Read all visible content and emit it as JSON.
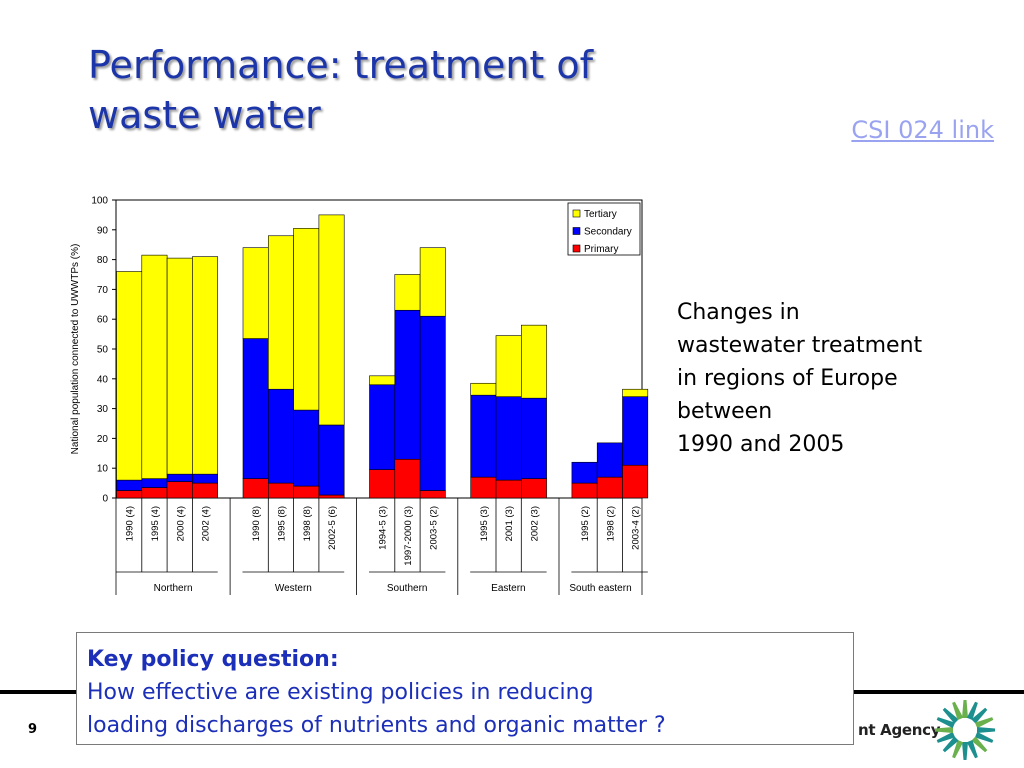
{
  "slide": {
    "title_lines": [
      "Performance: treatment of",
      "waste water"
    ],
    "link_text": "CSI 024 link",
    "caption_lines": [
      "Changes in",
      "wastewater treatment",
      "in regions of Europe",
      "between",
      "1990 and 2005"
    ],
    "policy_heading": "Key policy question:",
    "policy_lines": [
      "How effective are existing policies in reducing",
      "loading discharges of nutrients and organic matter ?"
    ],
    "page_number": "9",
    "agency_text": "nt Agency",
    "colors": {
      "title": "#1c35a8",
      "link": "#9aa3f0",
      "policy_text": "#1c2fb8",
      "logo": "#1e8f8f"
    }
  },
  "chart_data": {
    "type": "bar",
    "stacked": true,
    "ylabel": "National population connected to UWWTPs (%)",
    "ylim": [
      0,
      100
    ],
    "yticks": [
      0,
      10,
      20,
      30,
      40,
      50,
      60,
      70,
      80,
      90,
      100
    ],
    "legend_position": "top-right",
    "groups": [
      {
        "name": "Northern",
        "categories": [
          "1990 (4)",
          "1995 (4)",
          "2000 (4)",
          "2002 (4)"
        ]
      },
      {
        "name": "Western",
        "categories": [
          "1990 (8)",
          "1995 (8)",
          "1998 (8)",
          "2002-5 (6)"
        ]
      },
      {
        "name": "Southern",
        "categories": [
          "1994-5 (3)",
          "1997-2000 (3)",
          "2003-5 (2)"
        ]
      },
      {
        "name": "Eastern",
        "categories": [
          "1995 (3)",
          "2001 (3)",
          "2002 (3)"
        ]
      },
      {
        "name": "South eastern",
        "categories": [
          "1995 (2)",
          "1998 (2)",
          "2003-4 (2)"
        ]
      }
    ],
    "series": [
      {
        "name": "Primary",
        "color": "#ff0000",
        "values": [
          2.5,
          3.5,
          5.5,
          5,
          6.5,
          5,
          4,
          1,
          9.5,
          13,
          2.5,
          7,
          6,
          6.5,
          5,
          7,
          11
        ]
      },
      {
        "name": "Secondary",
        "color": "#0000ff",
        "values": [
          3.5,
          3,
          2.5,
          3,
          47,
          31.5,
          25.5,
          23.5,
          28.5,
          50,
          58.5,
          27.5,
          28,
          27,
          7,
          11.5,
          23
        ]
      },
      {
        "name": "Tertiary",
        "color": "#ffff00",
        "values": [
          70,
          75,
          72.5,
          73,
          30.5,
          51.5,
          61,
          70.5,
          3,
          12,
          23,
          4,
          20.5,
          24.5,
          0,
          0,
          2.5
        ]
      }
    ]
  }
}
